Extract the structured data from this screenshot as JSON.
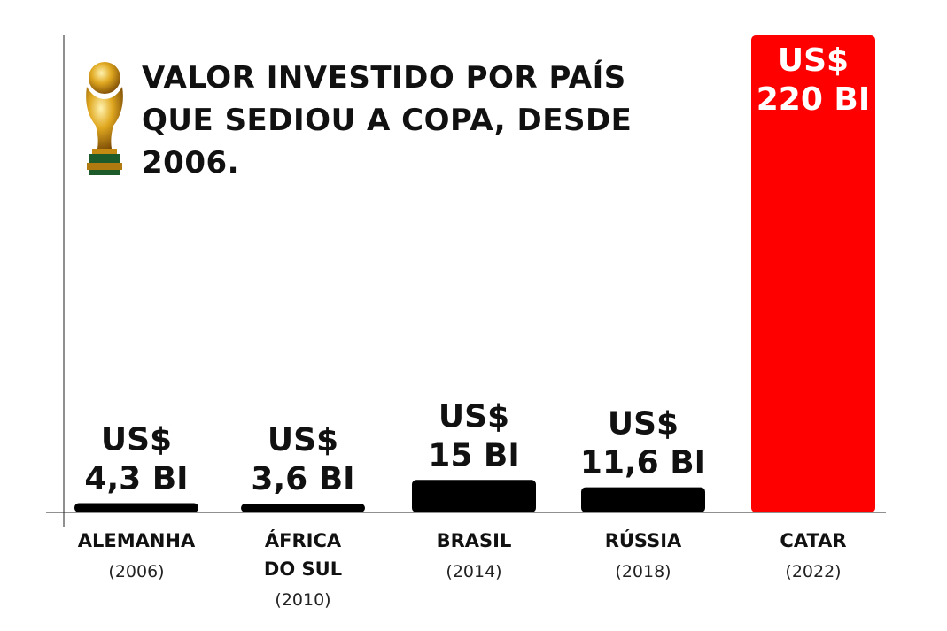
{
  "chart_data": {
    "type": "bar",
    "title": "VALOR INVESTIDO POR PAÍS QUE SEDIOU A COPA, DESDE 2006.",
    "categories": [
      "ALEMANHA",
      "ÁFRICA DO SUL",
      "BRASIL",
      "RÚSSIA",
      "CATAR"
    ],
    "years": [
      "(2006)",
      "(2010)",
      "(2014)",
      "(2018)",
      "(2022)"
    ],
    "values": [
      4.3,
      3.6,
      15,
      11.6,
      220
    ],
    "value_labels": [
      [
        "US$",
        "4,3 BI"
      ],
      [
        "US$",
        "3,6 BI"
      ],
      [
        "US$",
        "15 BI"
      ],
      [
        "US$",
        "11,6 BI"
      ],
      [
        "US$",
        "220 BI"
      ]
    ],
    "category_lines": [
      [
        "ALEMANHA"
      ],
      [
        "ÁFRICA",
        "DO SUL"
      ],
      [
        "BRASIL"
      ],
      [
        "RÚSSIA"
      ],
      [
        "CATAR"
      ]
    ],
    "ylabel": "",
    "xlabel": "",
    "ylim": [
      0,
      220
    ],
    "colors": {
      "default_bar": "#000000",
      "highlight_bar": "#ff0000",
      "highlight_label": "#ffffff",
      "text": "#111111",
      "year_text": "#222222"
    },
    "highlight_index": 4
  }
}
